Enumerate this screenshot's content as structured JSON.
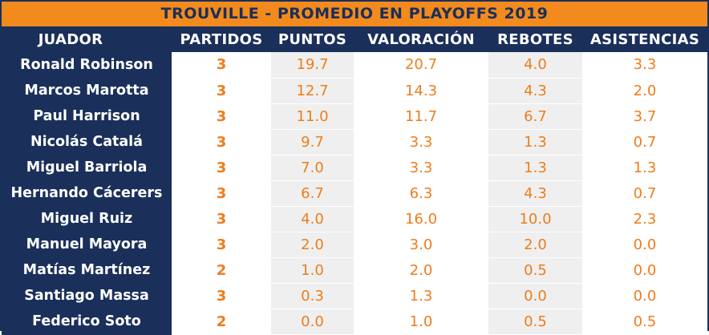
{
  "title": "TROUVILLE - PROMEDIO EN PLAYOFFS 2019",
  "headers": {
    "player": "JUADOR",
    "games": "PARTIDOS",
    "points": "PUNTOS",
    "rating": "VALORACIÓN",
    "rebounds": "REBOTES",
    "assists": "ASISTENCIAS"
  },
  "colors": {
    "navy": "#1a2f5a",
    "orange": "#f28a1d",
    "value_orange": "#ee7d1c",
    "shade": "#efefef"
  },
  "rows": [
    {
      "name": "Ronald Robinson",
      "games": "3",
      "points": "19.7",
      "rating": "20.7",
      "rebounds": "4.0",
      "assists": "3.3"
    },
    {
      "name": "Marcos Marotta",
      "games": "3",
      "points": "12.7",
      "rating": "14.3",
      "rebounds": "4.3",
      "assists": "2.0"
    },
    {
      "name": "Paul Harrison",
      "games": "3",
      "points": "11.0",
      "rating": "11.7",
      "rebounds": "6.7",
      "assists": "3.7"
    },
    {
      "name": "Nicolás Catalá",
      "games": "3",
      "points": "9.7",
      "rating": "3.3",
      "rebounds": "1.3",
      "assists": "0.7"
    },
    {
      "name": "Miguel Barriola",
      "games": "3",
      "points": "7.0",
      "rating": "3.3",
      "rebounds": "1.3",
      "assists": "1.3"
    },
    {
      "name": "Hernando Cácerers",
      "games": "3",
      "points": "6.7",
      "rating": "6.3",
      "rebounds": "4.3",
      "assists": "0.7"
    },
    {
      "name": "Miguel Ruiz",
      "games": "3",
      "points": "4.0",
      "rating": "16.0",
      "rebounds": "10.0",
      "assists": "2.3"
    },
    {
      "name": "Manuel Mayora",
      "games": "3",
      "points": "2.0",
      "rating": "3.0",
      "rebounds": "2.0",
      "assists": "0.0"
    },
    {
      "name": "Matías Martínez",
      "games": "2",
      "points": "1.0",
      "rating": "2.0",
      "rebounds": "0.5",
      "assists": "0.0"
    },
    {
      "name": "Santiago Massa",
      "games": "3",
      "points": "0.3",
      "rating": "1.3",
      "rebounds": "0.0",
      "assists": "0.0"
    },
    {
      "name": "Federico Soto",
      "games": "2",
      "points": "0.0",
      "rating": "1.0",
      "rebounds": "0.5",
      "assists": "0.5"
    }
  ]
}
